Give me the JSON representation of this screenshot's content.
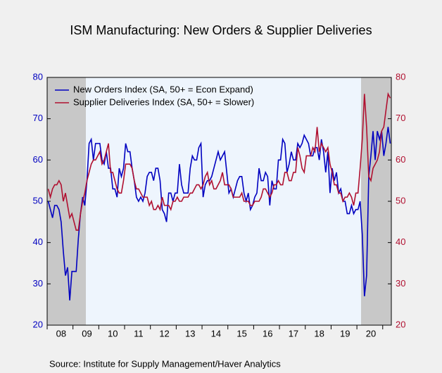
{
  "chart_data": {
    "type": "line",
    "title": "ISM Manufacturing: New Orders & Supplier Deliveries",
    "source": "Source:  Institute for Supply Management/Haver Analytics",
    "categories": [
      null,
      null,
      null,
      null,
      null,
      null,
      "08",
      null,
      null,
      null,
      null,
      null,
      null,
      null,
      null,
      null,
      null,
      null,
      "09",
      null,
      null,
      null,
      null,
      null,
      null,
      null,
      null,
      null,
      null,
      null,
      "10",
      null,
      null,
      null,
      null,
      null,
      null,
      null,
      null,
      null,
      null,
      null,
      "11",
      null,
      null,
      null,
      null,
      null,
      null,
      null,
      null,
      null,
      null,
      null,
      "12",
      null,
      null,
      null,
      null,
      null,
      null,
      null,
      null,
      null,
      null,
      null,
      "13",
      null,
      null,
      null,
      null,
      null,
      null,
      null,
      null,
      null,
      null,
      null,
      "14",
      null,
      null,
      null,
      null,
      null,
      null,
      null,
      null,
      null,
      null,
      null,
      "15",
      null,
      null,
      null,
      null,
      null,
      null,
      null,
      null,
      null,
      null,
      null,
      "16",
      null,
      null,
      null,
      null,
      null,
      null,
      null,
      null,
      null,
      null,
      null,
      "17",
      null,
      null,
      null,
      null,
      null,
      null,
      null,
      null,
      null,
      null,
      null,
      "18",
      null,
      null,
      null,
      null,
      null,
      null,
      null,
      null,
      null,
      null,
      null,
      "19",
      null,
      null,
      null,
      null,
      null,
      null,
      null,
      null,
      null,
      null,
      null,
      "20",
      null,
      null,
      null,
      null,
      null,
      null,
      null,
      null,
      null
    ],
    "series": [
      {
        "name": "New Orders Index (SA, 50+ = Econ Expand)",
        "color": "#0000c0",
        "values": [
          50,
          48,
          46,
          49,
          49,
          48,
          45,
          38,
          32,
          34,
          26,
          33,
          33,
          33,
          41,
          47,
          51,
          49,
          55,
          64,
          65,
          60,
          64,
          64,
          64,
          60,
          59,
          62,
          58,
          58,
          53,
          53,
          51,
          58,
          56,
          58,
          64,
          62,
          62,
          58,
          55,
          51,
          50,
          51,
          50,
          52,
          56,
          57,
          57,
          55,
          58,
          58,
          55,
          48,
          47,
          45,
          52,
          52,
          50,
          52,
          52,
          59,
          54,
          52,
          52,
          52,
          58,
          61,
          60,
          60,
          63,
          64,
          51,
          54,
          55,
          55,
          56,
          58,
          60,
          62,
          60,
          61,
          62,
          57,
          52,
          53,
          51,
          53,
          55,
          56,
          56,
          52,
          50,
          52,
          48,
          49,
          51,
          52,
          58,
          55,
          55,
          57,
          56,
          49,
          55,
          53,
          53,
          60,
          60,
          65,
          64,
          57,
          59,
          62,
          60,
          60,
          64,
          63,
          64,
          66,
          65,
          64,
          61,
          61,
          63,
          63,
          60,
          65,
          62,
          57,
          62,
          52,
          58,
          55,
          57,
          52,
          53,
          50,
          50,
          47,
          47,
          49,
          47,
          48,
          48,
          50,
          42,
          27,
          32,
          56,
          61,
          67,
          60,
          67,
          65,
          67,
          61,
          64,
          68,
          64
        ]
      },
      {
        "name": "Supplier Deliveries Index (SA, 50+ = Slower)",
        "color": "#b01030",
        "axis": "y2",
        "values": [
          53,
          51,
          53,
          54,
          54,
          55,
          54,
          50,
          52,
          49,
          46,
          47,
          45,
          43,
          43,
          47,
          50,
          52,
          55,
          57,
          59,
          60,
          60,
          61,
          62,
          59,
          60,
          62,
          64,
          57,
          57,
          55,
          53,
          52,
          52,
          55,
          59,
          59,
          59,
          58,
          55,
          53,
          53,
          52,
          51,
          51,
          51,
          49,
          50,
          48,
          48,
          49,
          48,
          51,
          49,
          49,
          49,
          48,
          50,
          50,
          51,
          50,
          50,
          51,
          51,
          51,
          52,
          52,
          53,
          54,
          54,
          53,
          54,
          56,
          57,
          54,
          55,
          53,
          53,
          54,
          55,
          57,
          54,
          54,
          54,
          53,
          51,
          51,
          51,
          51,
          52,
          50,
          50,
          50,
          49,
          49,
          50,
          50,
          50,
          51,
          53,
          53,
          52,
          51,
          52,
          54,
          54,
          55,
          54,
          54,
          57,
          57,
          55,
          55,
          57,
          57,
          63,
          61,
          58,
          57,
          61,
          61,
          61,
          63,
          62,
          68,
          62,
          64,
          63,
          62,
          63,
          59,
          57,
          54,
          54,
          52,
          52,
          50,
          51,
          51,
          52,
          51,
          49,
          52,
          52,
          58,
          65,
          76,
          68,
          56,
          55,
          58,
          59,
          60,
          62,
          67,
          68,
          72,
          76,
          75
        ]
      }
    ],
    "ylim": [
      20,
      80
    ],
    "yticks": [
      20,
      30,
      40,
      50,
      60,
      70,
      80
    ],
    "y2lim": [
      20,
      80
    ],
    "y2ticks": [
      20,
      30,
      40,
      50,
      60,
      70,
      80
    ],
    "legend": "upper left"
  }
}
